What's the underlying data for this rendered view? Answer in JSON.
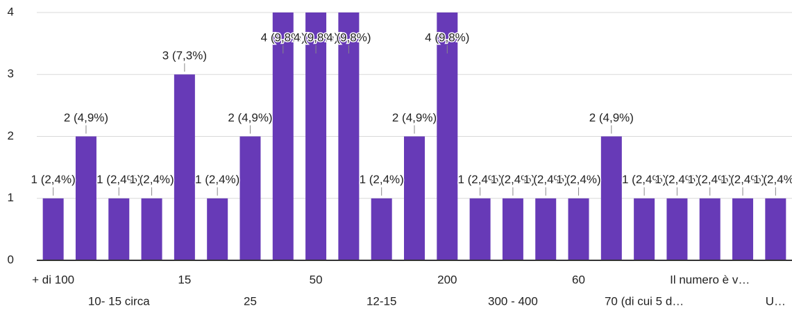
{
  "chart_data": {
    "type": "bar",
    "categories": [
      "+ di 100",
      null,
      "10- 15 circa",
      null,
      "15",
      null,
      "25",
      null,
      "50",
      null,
      "12-15",
      null,
      "200",
      null,
      "300 - 400",
      null,
      "60",
      null,
      "70 (di cui 5 d…",
      null,
      "Il numero è v…",
      null,
      "U…"
    ],
    "values": [
      1,
      2,
      1,
      1,
      3,
      1,
      2,
      4,
      4,
      4,
      1,
      2,
      4,
      1,
      1,
      1,
      1,
      2,
      1,
      1,
      1,
      1,
      1
    ],
    "value_labels": [
      "1 (2,4%)",
      "2 (4,9%)",
      "1 (2,4%)",
      "1 (2,4%)",
      "3 (7,3%)",
      "1 (2,4%)",
      "2 (4,9%)",
      "4 (9,8%)",
      "4 (9,8%)",
      "4 (9,8%)",
      "1 (2,4%)",
      "2 (4,9%)",
      "4 (9,8%)",
      "1 (2,4%)",
      "1 (2,4%)",
      "1 (2,4%)",
      "1 (2,4%)",
      "2 (4,9%)",
      "1 (2,4%)",
      "1 (2,4%)",
      "1 (2,4%)",
      "1 (2,4%)",
      "1 (2,4%)"
    ],
    "color": "#673ab7",
    "ylim": [
      0,
      4
    ],
    "yticks": [
      0,
      1,
      2,
      3,
      4
    ],
    "grid": true
  }
}
